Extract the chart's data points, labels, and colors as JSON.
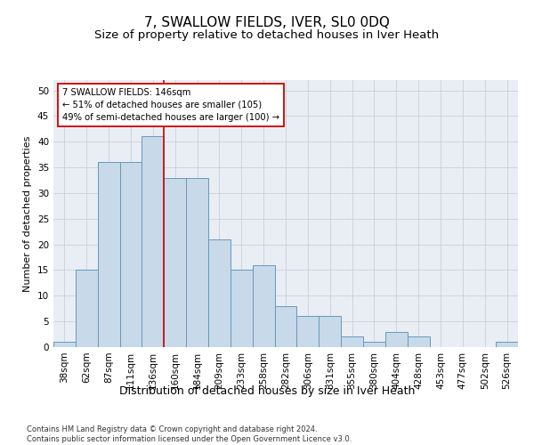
{
  "title": "7, SWALLOW FIELDS, IVER, SL0 0DQ",
  "subtitle": "Size of property relative to detached houses in Iver Heath",
  "xlabel": "Distribution of detached houses by size in Iver Heath",
  "ylabel": "Number of detached properties",
  "categories": [
    "38sqm",
    "62sqm",
    "87sqm",
    "111sqm",
    "136sqm",
    "160sqm",
    "184sqm",
    "209sqm",
    "233sqm",
    "258sqm",
    "282sqm",
    "306sqm",
    "331sqm",
    "355sqm",
    "380sqm",
    "404sqm",
    "428sqm",
    "453sqm",
    "477sqm",
    "502sqm",
    "526sqm"
  ],
  "values": [
    1,
    15,
    36,
    36,
    41,
    33,
    33,
    21,
    15,
    16,
    8,
    6,
    6,
    2,
    1,
    3,
    2,
    0,
    0,
    0,
    1
  ],
  "bar_color": "#c8d9ea",
  "bar_edge_color": "#6699bb",
  "vline_x": 4.5,
  "vline_color": "#cc0000",
  "annotation_line1": "7 SWALLOW FIELDS: 146sqm",
  "annotation_line2": "← 51% of detached houses are smaller (105)",
  "annotation_line3": "49% of semi-detached houses are larger (100) →",
  "ylim": [
    0,
    52
  ],
  "yticks": [
    0,
    5,
    10,
    15,
    20,
    25,
    30,
    35,
    40,
    45,
    50
  ],
  "grid_color": "#c8d0d8",
  "background_color": "#e8eef4",
  "footer": "Contains HM Land Registry data © Crown copyright and database right 2024.\nContains public sector information licensed under the Open Government Licence v3.0.",
  "title_fontsize": 11,
  "subtitle_fontsize": 9.5,
  "xlabel_fontsize": 9,
  "ylabel_fontsize": 8,
  "tick_fontsize": 7.5,
  "footer_fontsize": 6
}
